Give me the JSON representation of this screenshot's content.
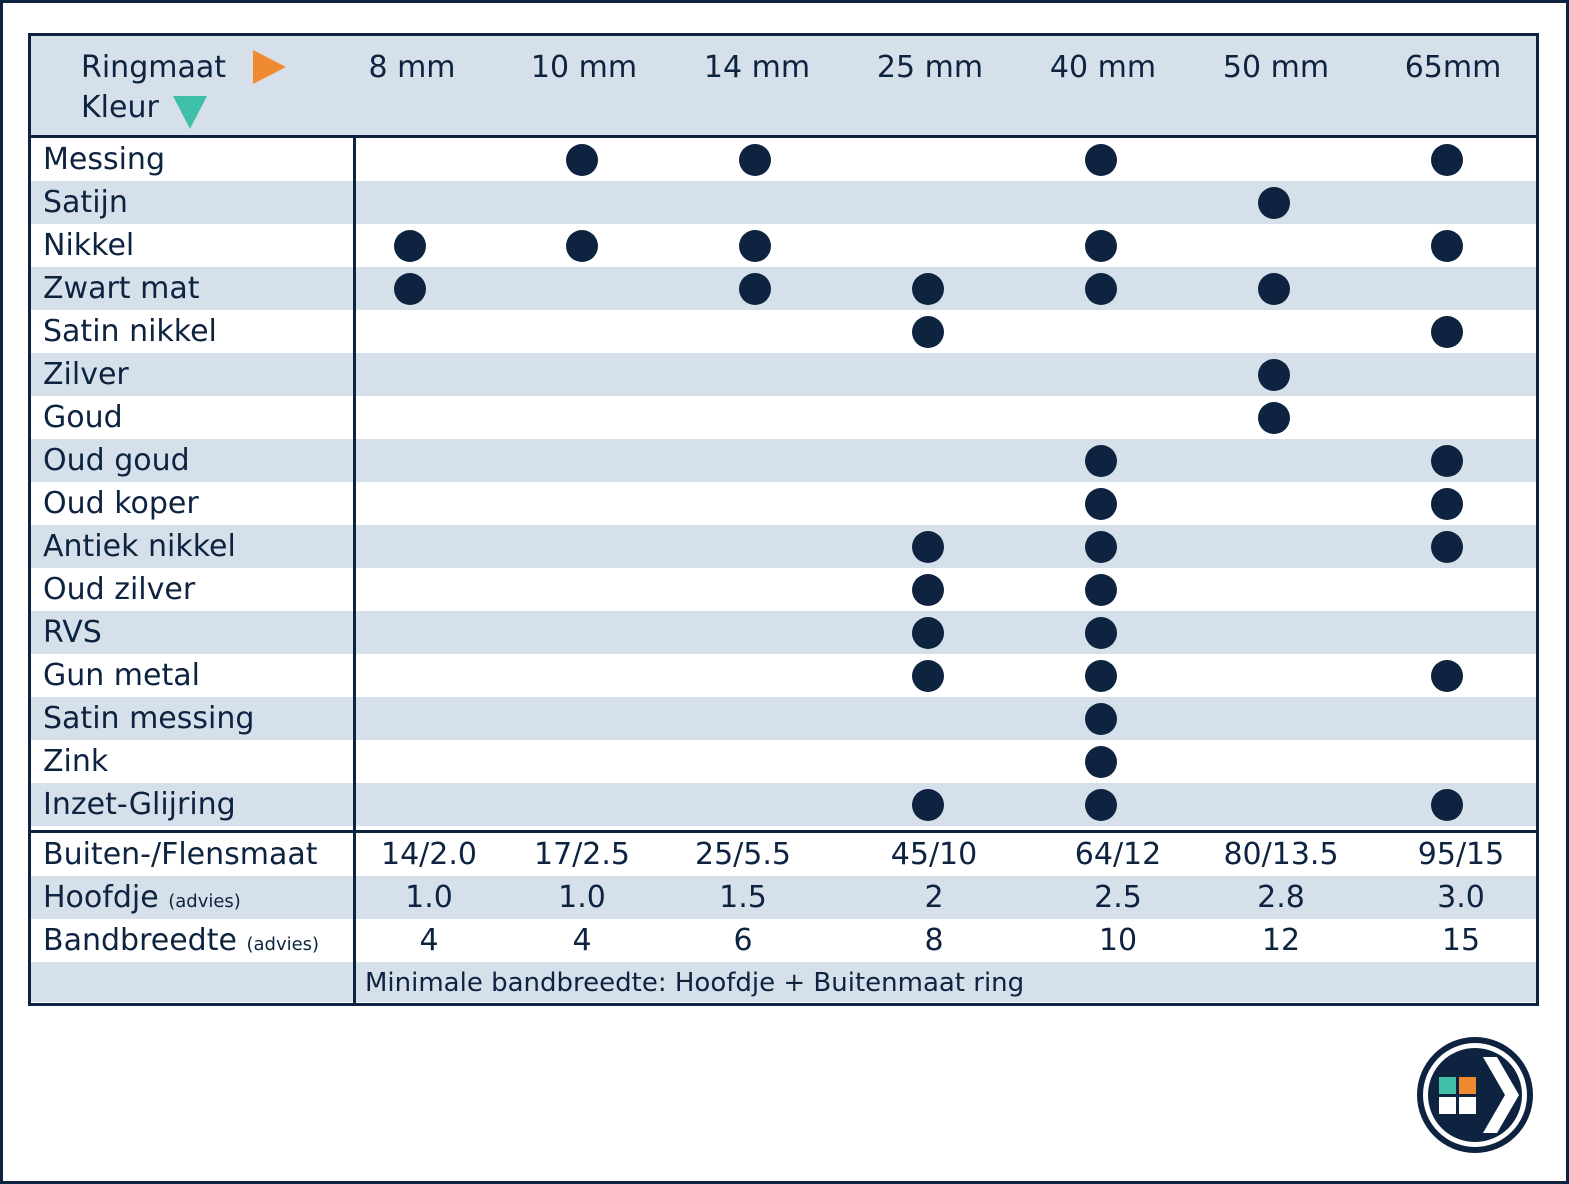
{
  "header": {
    "size_label": "Ringmaat",
    "color_label": "Kleur",
    "sizes": [
      "8 mm",
      "10 mm",
      "14 mm",
      "25 mm",
      "40 mm",
      "50 mm",
      "65mm"
    ]
  },
  "colors": [
    {
      "name": "Messing",
      "available": [
        false,
        true,
        true,
        false,
        true,
        false,
        true
      ]
    },
    {
      "name": "Satijn",
      "available": [
        false,
        false,
        false,
        false,
        false,
        true,
        false
      ]
    },
    {
      "name": "Nikkel",
      "available": [
        true,
        true,
        true,
        false,
        true,
        false,
        true
      ]
    },
    {
      "name": "Zwart mat",
      "available": [
        true,
        false,
        true,
        true,
        true,
        true,
        false
      ]
    },
    {
      "name": "Satin nikkel",
      "available": [
        false,
        false,
        false,
        true,
        false,
        false,
        true
      ]
    },
    {
      "name": "Zilver",
      "available": [
        false,
        false,
        false,
        false,
        false,
        true,
        false
      ]
    },
    {
      "name": "Goud",
      "available": [
        false,
        false,
        false,
        false,
        false,
        true,
        false
      ]
    },
    {
      "name": "Oud goud",
      "available": [
        false,
        false,
        false,
        false,
        true,
        false,
        true
      ]
    },
    {
      "name": "Oud koper",
      "available": [
        false,
        false,
        false,
        false,
        true,
        false,
        true
      ]
    },
    {
      "name": "Antiek nikkel",
      "available": [
        false,
        false,
        false,
        true,
        true,
        false,
        true
      ]
    },
    {
      "name": "Oud zilver",
      "available": [
        false,
        false,
        false,
        true,
        true,
        false,
        false
      ]
    },
    {
      "name": "RVS",
      "available": [
        false,
        false,
        false,
        true,
        true,
        false,
        false
      ]
    },
    {
      "name": "Gun metal",
      "available": [
        false,
        false,
        false,
        true,
        true,
        false,
        true
      ]
    },
    {
      "name": "Satin messing",
      "available": [
        false,
        false,
        false,
        false,
        true,
        false,
        false
      ]
    },
    {
      "name": "Zink",
      "available": [
        false,
        false,
        false,
        false,
        true,
        false,
        false
      ]
    },
    {
      "name": "Inzet-Glijring",
      "available": [
        false,
        false,
        false,
        true,
        true,
        false,
        true
      ]
    }
  ],
  "specs": [
    {
      "label": "Buiten-/Flensmaat",
      "hint": "",
      "values": [
        "14/2.0",
        "17/2.5",
        "25/5.5",
        "45/10",
        "64/12",
        "80/13.5",
        "95/15"
      ]
    },
    {
      "label": "Hoofdje",
      "hint": "(advies)",
      "values": [
        "1.0",
        "1.0",
        "1.5",
        "2",
        "2.5",
        "2.8",
        "3.0"
      ]
    },
    {
      "label": "Bandbreedte",
      "hint": "(advies)",
      "values": [
        "4",
        "4",
        "6",
        "8",
        "10",
        "12",
        "15"
      ]
    }
  ],
  "note": "Minimale bandbreedte: Hoofdje + Buitenmaat ring",
  "theme": {
    "navy": "#0d2340",
    "shade": "#d6e0ea",
    "orange": "#f08a30",
    "teal": "#3fbfa8"
  },
  "logo": {
    "icon": "chevron-logo-icon"
  }
}
